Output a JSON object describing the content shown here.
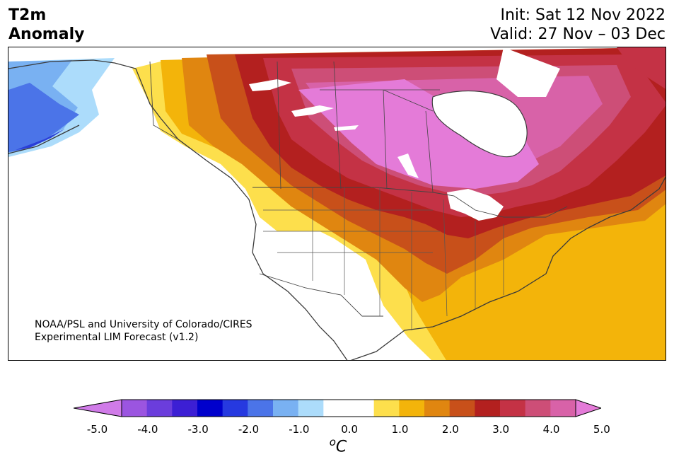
{
  "header": {
    "title_line1": "T2m",
    "title_line2": "Anomaly",
    "init": "Init: Sat 12 Nov 2022",
    "valid": "Valid: 27 Nov – 03 Dec"
  },
  "credit": {
    "line1": "NOAA/PSL and University of Colorado/CIRES",
    "line2": "Experimental LIM Forecast (v1.2)"
  },
  "colorbar": {
    "colors": [
      "#d07be8",
      "#9b55e0",
      "#6b3ddc",
      "#3c1fd4",
      "#0000cc",
      "#2639e0",
      "#4b74e8",
      "#79b1f2",
      "#acdcfb",
      "#ffffff",
      "#ffffff",
      "#fddf4c",
      "#f3b40a",
      "#e08610",
      "#c8501a",
      "#b3201f",
      "#c43245",
      "#cd4e77",
      "#d862a8",
      "#e47bd8"
    ],
    "tick_labels": [
      "-5.0",
      "-4.0",
      "-3.0",
      "-2.0",
      "-1.0",
      "0.0",
      "1.0",
      "2.0",
      "3.0",
      "4.0",
      "5.0"
    ],
    "unit_sup": "o",
    "unit": "C"
  },
  "map": {
    "region": "North America",
    "field": "2m temperature anomaly",
    "colors": {
      "cold3": "#2a3fd8",
      "cold2": "#4b74e8",
      "cold1": "#79b1f2",
      "cold0": "#acdcfb",
      "warm1": "#fddf4c",
      "warm2": "#f3b40a",
      "warm3": "#e08610",
      "warm4": "#c8501a",
      "warm5": "#b3201f",
      "warm6": "#c43245",
      "warm7": "#cd4e77",
      "warm8": "#d862a8",
      "warm9": "#e47bd8",
      "coast": "#3a3a3a"
    }
  }
}
